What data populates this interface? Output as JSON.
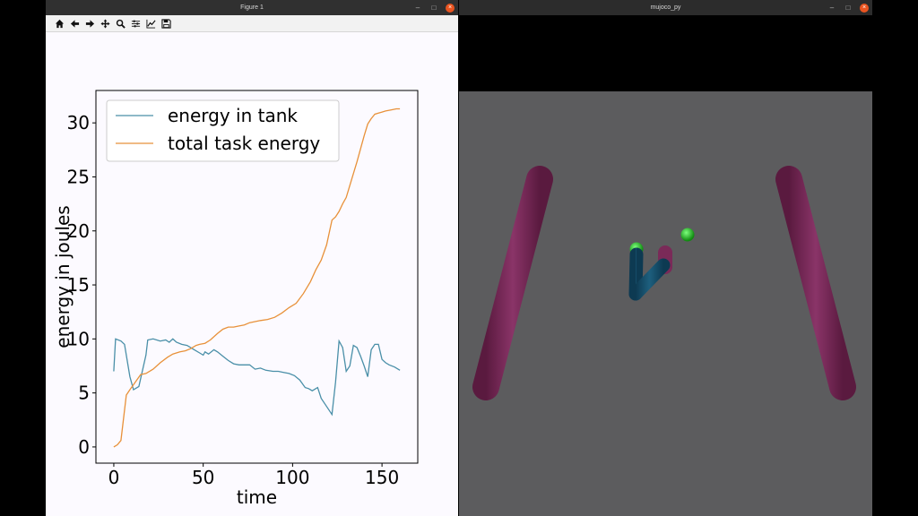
{
  "figure_window": {
    "title": "Figure 1",
    "toolbar": [
      "home-icon",
      "back-icon",
      "forward-icon",
      "pan-icon",
      "zoom-icon",
      "configure-subplots-icon",
      "edit-axis-icon",
      "save-icon"
    ]
  },
  "mujoco_window": {
    "title": "mujoco_py"
  },
  "window_controls": {
    "minimize": "–",
    "maximize": "□",
    "close": "×"
  },
  "colors": {
    "tank": "#4a8fa8",
    "task": "#e8913a",
    "frame": "#7a2a55",
    "floor": "#5c5c5e"
  },
  "chart_data": {
    "type": "line",
    "xlabel": "time",
    "ylabel": "energy in joules",
    "xlim": [
      -10,
      170
    ],
    "ylim": [
      -1.5,
      33
    ],
    "xticks": [
      0,
      50,
      100,
      150
    ],
    "yticks": [
      0,
      5,
      10,
      15,
      20,
      25,
      30
    ],
    "legend": "top-left",
    "series": [
      {
        "name": "energy in tank",
        "x": [
          0,
          1,
          4,
          6,
          9,
          11,
          14,
          18,
          19,
          22,
          26,
          29,
          31,
          33,
          35,
          38,
          41,
          45,
          48,
          50,
          51,
          53,
          56,
          58,
          61,
          64,
          67,
          70,
          73,
          76,
          79,
          82,
          85,
          89,
          92,
          95,
          98,
          101,
          104,
          107,
          109,
          111,
          114,
          116,
          118,
          120,
          122,
          124,
          126,
          128,
          130,
          132,
          134,
          136,
          138,
          140,
          142,
          144,
          146,
          148,
          150,
          152,
          154,
          157,
          160
        ],
        "values": [
          7.0,
          10.0,
          9.8,
          9.5,
          6.5,
          5.3,
          5.6,
          8.5,
          9.9,
          10.0,
          9.8,
          9.9,
          9.7,
          10.0,
          9.7,
          9.5,
          9.4,
          9.0,
          8.7,
          8.5,
          8.8,
          8.6,
          9.0,
          8.8,
          8.4,
          8.0,
          7.7,
          7.6,
          7.6,
          7.6,
          7.2,
          7.3,
          7.1,
          7.0,
          7.0,
          6.9,
          6.8,
          6.6,
          6.2,
          5.5,
          5.4,
          5.2,
          5.5,
          4.5,
          4.0,
          3.5,
          3.0,
          6.0,
          9.8,
          9.2,
          7.0,
          7.5,
          9.4,
          9.2,
          8.4,
          7.5,
          6.5,
          9.0,
          9.5,
          9.5,
          8.1,
          7.8,
          7.6,
          7.4,
          7.1
        ]
      },
      {
        "name": "total task energy",
        "x": [
          0,
          2,
          4,
          7,
          9,
          12,
          15,
          18,
          22,
          26,
          30,
          33,
          37,
          40,
          43,
          46,
          48,
          51,
          54,
          58,
          61,
          64,
          67,
          70,
          73,
          76,
          79,
          82,
          86,
          90,
          94,
          98,
          102,
          106,
          110,
          113,
          116,
          119,
          122,
          124,
          126,
          128,
          130,
          132,
          134,
          136,
          138,
          140,
          142,
          144,
          146,
          148,
          150,
          152,
          155,
          158,
          160
        ],
        "values": [
          0,
          0.2,
          0.6,
          4.8,
          5.3,
          6.0,
          6.7,
          6.8,
          7.2,
          7.8,
          8.3,
          8.6,
          8.8,
          8.9,
          9.1,
          9.4,
          9.5,
          9.6,
          9.9,
          10.5,
          10.9,
          11.1,
          11.1,
          11.2,
          11.3,
          11.5,
          11.6,
          11.7,
          11.8,
          12.0,
          12.4,
          12.9,
          13.3,
          14.2,
          15.3,
          16.4,
          17.3,
          18.7,
          21.0,
          21.3,
          21.8,
          22.5,
          23.1,
          24.2,
          25.3,
          26.4,
          27.6,
          28.8,
          29.9,
          30.4,
          30.8,
          30.9,
          31.0,
          31.1,
          31.2,
          31.3,
          31.3
        ]
      }
    ]
  }
}
